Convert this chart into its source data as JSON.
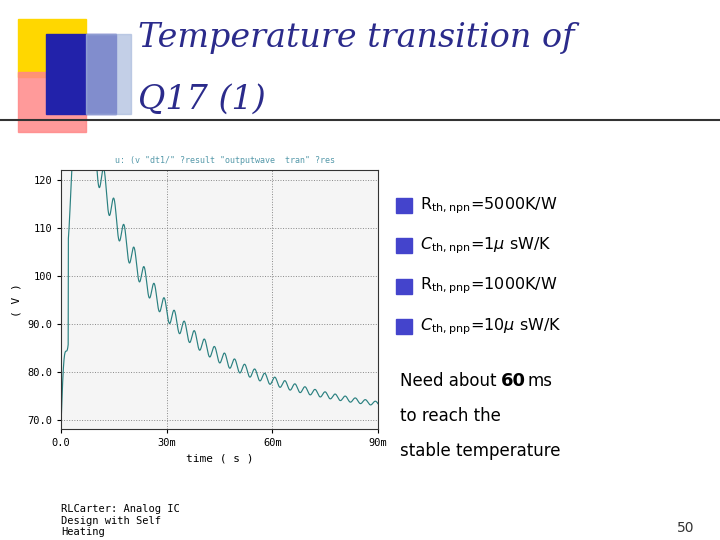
{
  "title_line1": "Temperature transition of",
  "title_line2": "Q17 (1)",
  "title_color": "#2B2B8B",
  "background_color": "#FFFFFF",
  "bullet_color": "#000000",
  "bullet_square_color": "#4444CC",
  "note_color": "#000000",
  "footer_text": "RLCarter: Analog IC\nDesign with Self\nHeating",
  "footer_color": "#000000",
  "page_number": "50",
  "spice_cmd": "u: (v \"dt1/\" ?result \"outputwave  tran\" ?res",
  "ylabel": "( V )",
  "xlabel": "time ( s )",
  "yticks": [
    "70.0",
    "80.0",
    "90.0",
    "100",
    "110",
    "120"
  ],
  "ytick_vals": [
    70.0,
    80.0,
    90.0,
    100.0,
    110.0,
    120.0
  ],
  "xtick_labels": [
    "0.0",
    "30m",
    "60m",
    "90m"
  ],
  "xtick_vals": [
    0.0,
    0.03,
    0.06,
    0.09
  ],
  "xlim": [
    0.0,
    0.09
  ],
  "ylim": [
    68.0,
    122.0
  ],
  "curve_color": "#2A8080",
  "deco_yellow": "#FFD700",
  "deco_red": "#FF8888",
  "deco_blue_dark": "#2222AA",
  "deco_blue_light": "#AABBDD"
}
